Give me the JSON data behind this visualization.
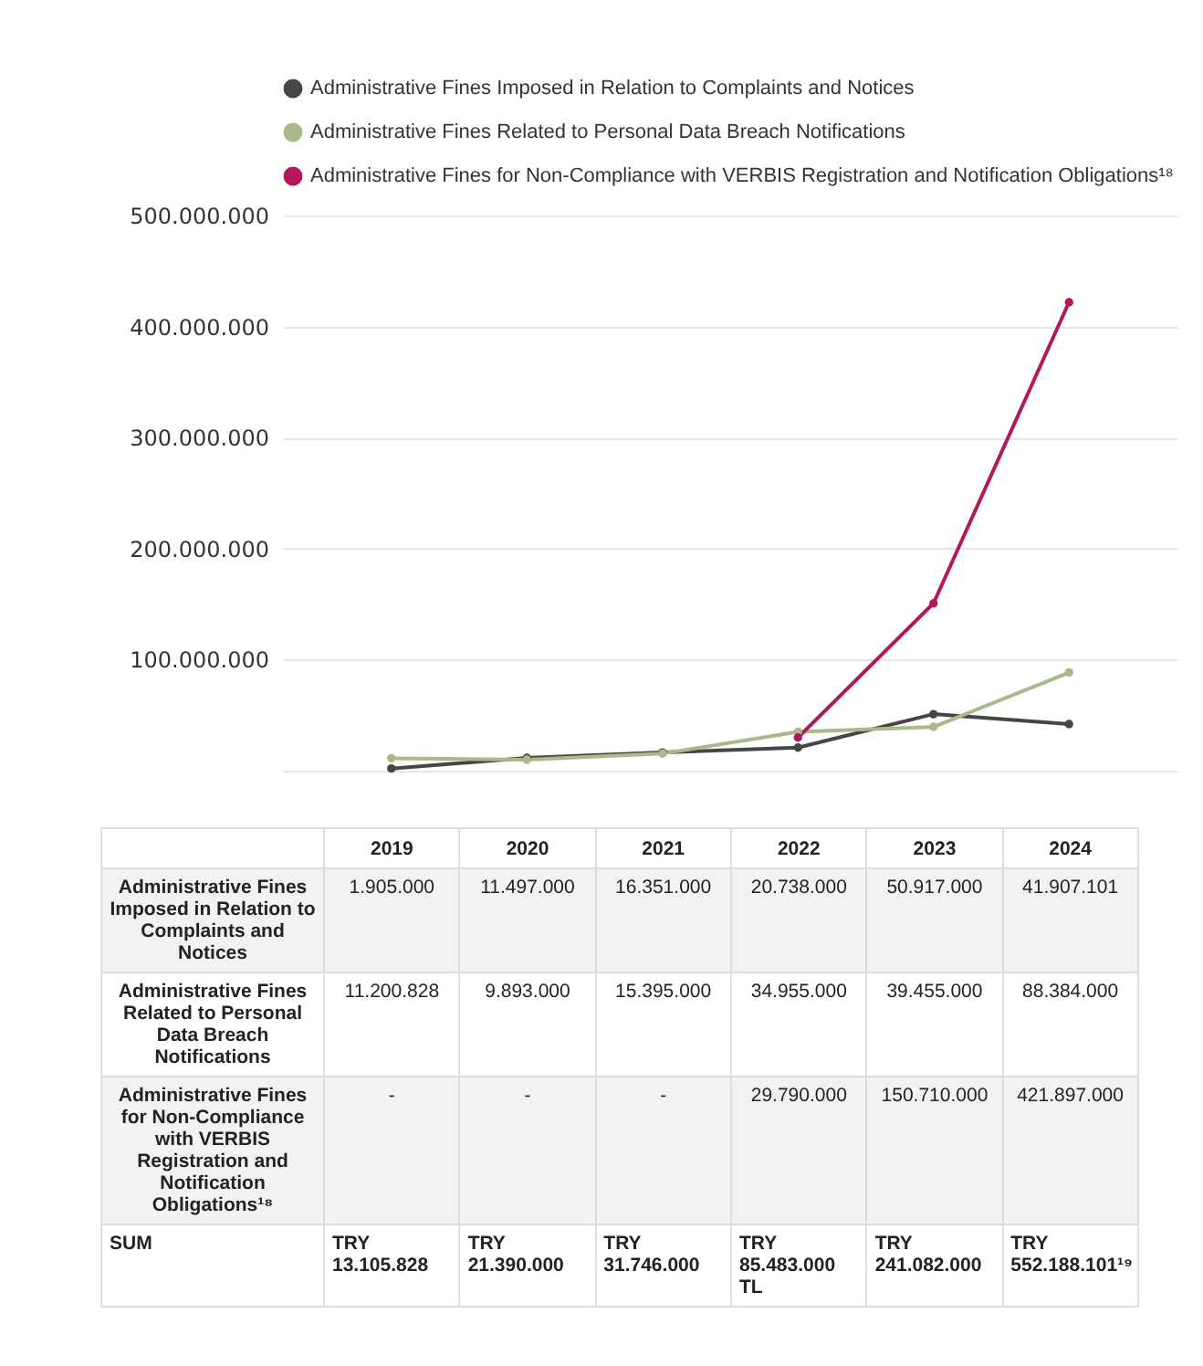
{
  "chart_data": {
    "type": "line",
    "categories": [
      "2019",
      "2020",
      "2021",
      "2022",
      "2023",
      "2024"
    ],
    "series": [
      {
        "name": "Administrative Fines Imposed in Relation to Complaints and Notices",
        "color": "#4a4446",
        "values": [
          1905000,
          11497000,
          16351000,
          20738000,
          50917000,
          41907101
        ],
        "value_labels": [
          "1.905.000",
          "11.497.000",
          "16.351.000",
          "20.738.000",
          "50.917.000",
          "41.907.101"
        ]
      },
      {
        "name": "Administrative Fines Related to Personal Data Breach Notifications",
        "color": "#a8b98a",
        "values": [
          11200828,
          9893000,
          15395000,
          34955000,
          39455000,
          88384000
        ],
        "value_labels": [
          "11.200.828",
          "9.893.000",
          "15.395.000",
          "34.955.000",
          "39.455.000",
          "88.384.000"
        ]
      },
      {
        "name": "Administrative Fines for Non-Compliance with VERBIS Registration and Notification Obligations¹⁸",
        "color": "#b0195a",
        "values": [
          null,
          null,
          null,
          29790000,
          150710000,
          421897000
        ],
        "value_labels": [
          "-",
          "-",
          "-",
          "29.790.000",
          "150.710.000",
          "421.897.000"
        ]
      }
    ],
    "totals": [
      "TRY 13.105.828",
      "TRY 21.390.000",
      "TRY 31.746.000",
      "TRY 85.483.000 TL",
      "TRY 241.082.000",
      "TRY 552.188.101¹⁹"
    ],
    "annotations": [
      "SUM"
    ],
    "ylim": [
      0,
      500000000
    ],
    "yticks": [
      {
        "value": 100000000,
        "label": "100.000.000"
      },
      {
        "value": 200000000,
        "label": "200.000.000"
      },
      {
        "value": 300000000,
        "label": "300.000.000"
      },
      {
        "value": 400000000,
        "label": "400.000.000"
      },
      {
        "value": 500000000,
        "label": "500.000.000"
      }
    ],
    "grid": "y",
    "legend": "top",
    "marker": "circle",
    "line_style": "solid",
    "tick_labels": "y"
  }
}
